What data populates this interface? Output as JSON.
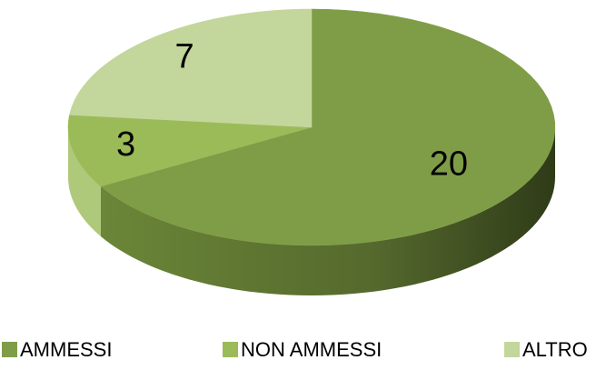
{
  "chart_data": {
    "type": "pie",
    "categories": [
      "AMMESSI",
      "NON AMMESSI",
      "ALTRO"
    ],
    "values": [
      20,
      3,
      7
    ],
    "colors": [
      "#7f9d47",
      "#9bbb59",
      "#c3d69b"
    ],
    "legend": "bottom"
  }
}
